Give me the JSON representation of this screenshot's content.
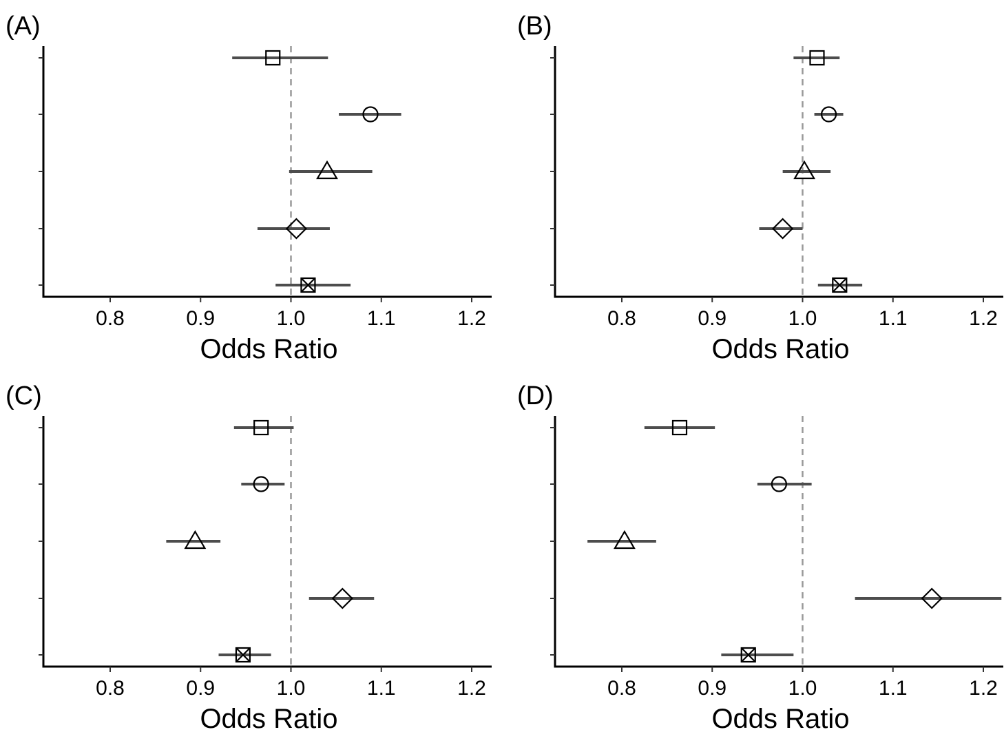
{
  "chart_data": [
    {
      "type": "forest",
      "panel": "(A)",
      "xlabel": "Odds Ratio",
      "xlim": [
        0.73,
        1.22
      ],
      "xticks": [
        0.8,
        0.9,
        1.0,
        1.1,
        1.2
      ],
      "xtick_labels": [
        "0.8",
        "0.9",
        "1.0",
        "1.1",
        "1.2"
      ],
      "reference_line": 1.0,
      "points": [
        {
          "marker": "square",
          "or": 0.98,
          "ci": [
            0.935,
            1.041
          ]
        },
        {
          "marker": "circle",
          "or": 1.088,
          "ci": [
            1.053,
            1.122
          ]
        },
        {
          "marker": "triangle",
          "or": 1.04,
          "ci": [
            0.998,
            1.09
          ]
        },
        {
          "marker": "diamond",
          "or": 1.006,
          "ci": [
            0.963,
            1.043
          ]
        },
        {
          "marker": "crossed-square",
          "or": 1.019,
          "ci": [
            0.983,
            1.066
          ]
        }
      ]
    },
    {
      "type": "forest",
      "panel": "(B)",
      "xlabel": "Odds Ratio",
      "xlim": [
        0.73,
        1.22
      ],
      "xticks": [
        0.8,
        0.9,
        1.0,
        1.1,
        1.2
      ],
      "xtick_labels": [
        "0.8",
        "0.9",
        "1.0",
        "1.1",
        "1.2"
      ],
      "reference_line": 1.0,
      "points": [
        {
          "marker": "square",
          "or": 1.016,
          "ci": [
            0.99,
            1.041
          ]
        },
        {
          "marker": "circle",
          "or": 1.029,
          "ci": [
            1.013,
            1.045
          ]
        },
        {
          "marker": "triangle",
          "or": 1.002,
          "ci": [
            0.978,
            1.031
          ]
        },
        {
          "marker": "diamond",
          "or": 0.978,
          "ci": [
            0.952,
            1.0
          ]
        },
        {
          "marker": "crossed-square",
          "or": 1.041,
          "ci": [
            1.017,
            1.066
          ]
        }
      ]
    },
    {
      "type": "forest",
      "panel": "(C)",
      "xlabel": "Odds Ratio",
      "xlim": [
        0.73,
        1.22
      ],
      "xticks": [
        0.8,
        0.9,
        1.0,
        1.1,
        1.2
      ],
      "xtick_labels": [
        "0.8",
        "0.9",
        "1.0",
        "1.1",
        "1.2"
      ],
      "reference_line": 1.0,
      "points": [
        {
          "marker": "square",
          "or": 0.967,
          "ci": [
            0.937,
            1.003
          ]
        },
        {
          "marker": "circle",
          "or": 0.967,
          "ci": [
            0.945,
            0.993
          ]
        },
        {
          "marker": "triangle",
          "or": 0.894,
          "ci": [
            0.862,
            0.922
          ]
        },
        {
          "marker": "diamond",
          "or": 1.057,
          "ci": [
            1.02,
            1.092
          ]
        },
        {
          "marker": "crossed-square",
          "or": 0.947,
          "ci": [
            0.92,
            0.978
          ]
        }
      ]
    },
    {
      "type": "forest",
      "panel": "(D)",
      "xlabel": "Odds Ratio",
      "xlim": [
        0.73,
        1.22
      ],
      "xticks": [
        0.8,
        0.9,
        1.0,
        1.1,
        1.2
      ],
      "xtick_labels": [
        "0.8",
        "0.9",
        "1.0",
        "1.1",
        "1.2"
      ],
      "reference_line": 1.0,
      "points": [
        {
          "marker": "square",
          "or": 0.864,
          "ci": [
            0.825,
            0.903
          ]
        },
        {
          "marker": "circle",
          "or": 0.974,
          "ci": [
            0.95,
            1.01
          ]
        },
        {
          "marker": "triangle",
          "or": 0.803,
          "ci": [
            0.762,
            0.838
          ]
        },
        {
          "marker": "diamond",
          "or": 1.143,
          "ci": [
            1.058,
            1.22
          ]
        },
        {
          "marker": "crossed-square",
          "or": 0.94,
          "ci": [
            0.91,
            0.99
          ]
        }
      ]
    }
  ]
}
